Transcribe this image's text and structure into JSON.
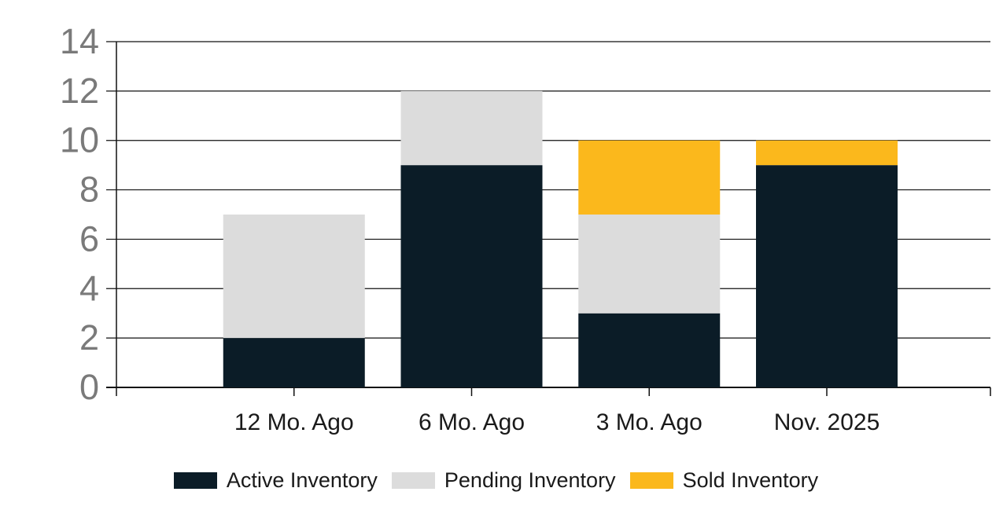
{
  "chart_data": {
    "type": "bar",
    "stacked": true,
    "title": "",
    "xlabel": "",
    "ylabel": "",
    "categories": [
      "12 Mo. Ago",
      "6 Mo. Ago",
      "3 Mo. Ago",
      "Nov. 2025"
    ],
    "series": [
      {
        "name": "Active Inventory",
        "color": "#0b1c27",
        "values": [
          2,
          9,
          3,
          9
        ]
      },
      {
        "name": "Pending Inventory",
        "color": "#dcdcdc",
        "values": [
          5,
          3,
          4,
          0
        ]
      },
      {
        "name": "Sold Inventory",
        "color": "#fbb81c",
        "values": [
          0,
          0,
          3,
          1
        ]
      }
    ],
    "totals": [
      7,
      12,
      10,
      10
    ],
    "ylim": [
      0,
      14
    ],
    "ytick_interval": 2,
    "ytick_labels": [
      "0",
      "2",
      "4",
      "6",
      "8",
      "10",
      "12",
      "14"
    ],
    "grid": true,
    "legend_position": "bottom"
  },
  "theme": {
    "background": "#ffffff",
    "grid_color": "#111111",
    "axis_tick_label_color": "#7a7a7a",
    "category_label_color": "#1a1a1a",
    "legend_text_color": "#1a1a1a"
  }
}
